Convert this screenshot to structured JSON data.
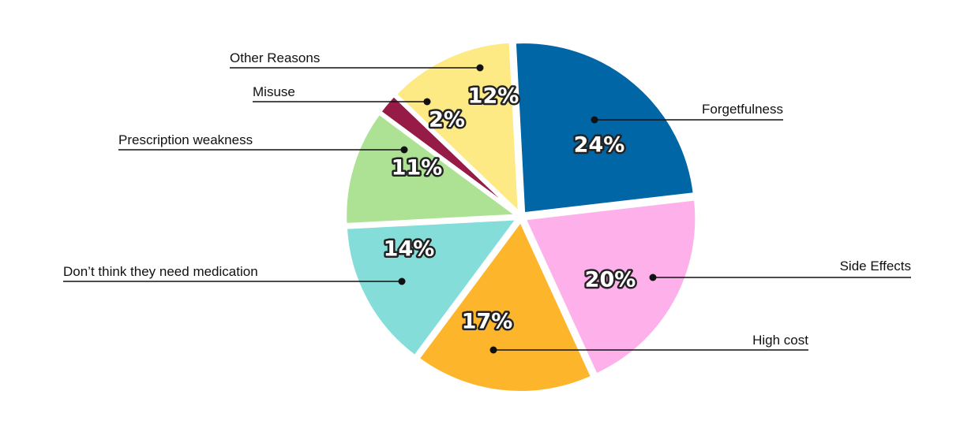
{
  "chart_data": {
    "type": "pie",
    "title": "",
    "slices": [
      {
        "label": "Forgetfulness",
        "value": 24,
        "value_label": "24%",
        "color": "#0066a5"
      },
      {
        "label": "Side Effects",
        "value": 20,
        "value_label": "20%",
        "color": "#fdb0ea"
      },
      {
        "label": "High cost",
        "value": 17,
        "value_label": "17%",
        "color": "#fdb62c"
      },
      {
        "label": "Don’t think they need medication",
        "value": 14,
        "value_label": "14%",
        "color": "#84ddd8"
      },
      {
        "label": "Prescription weakness",
        "value": 11,
        "value_label": "11%",
        "color": "#ade295"
      },
      {
        "label": "Misuse",
        "value": 2,
        "value_label": "2%",
        "color": "#971b47"
      },
      {
        "label": "Other Reasons",
        "value": 12,
        "value_label": "12%",
        "color": "#feea85"
      }
    ]
  }
}
